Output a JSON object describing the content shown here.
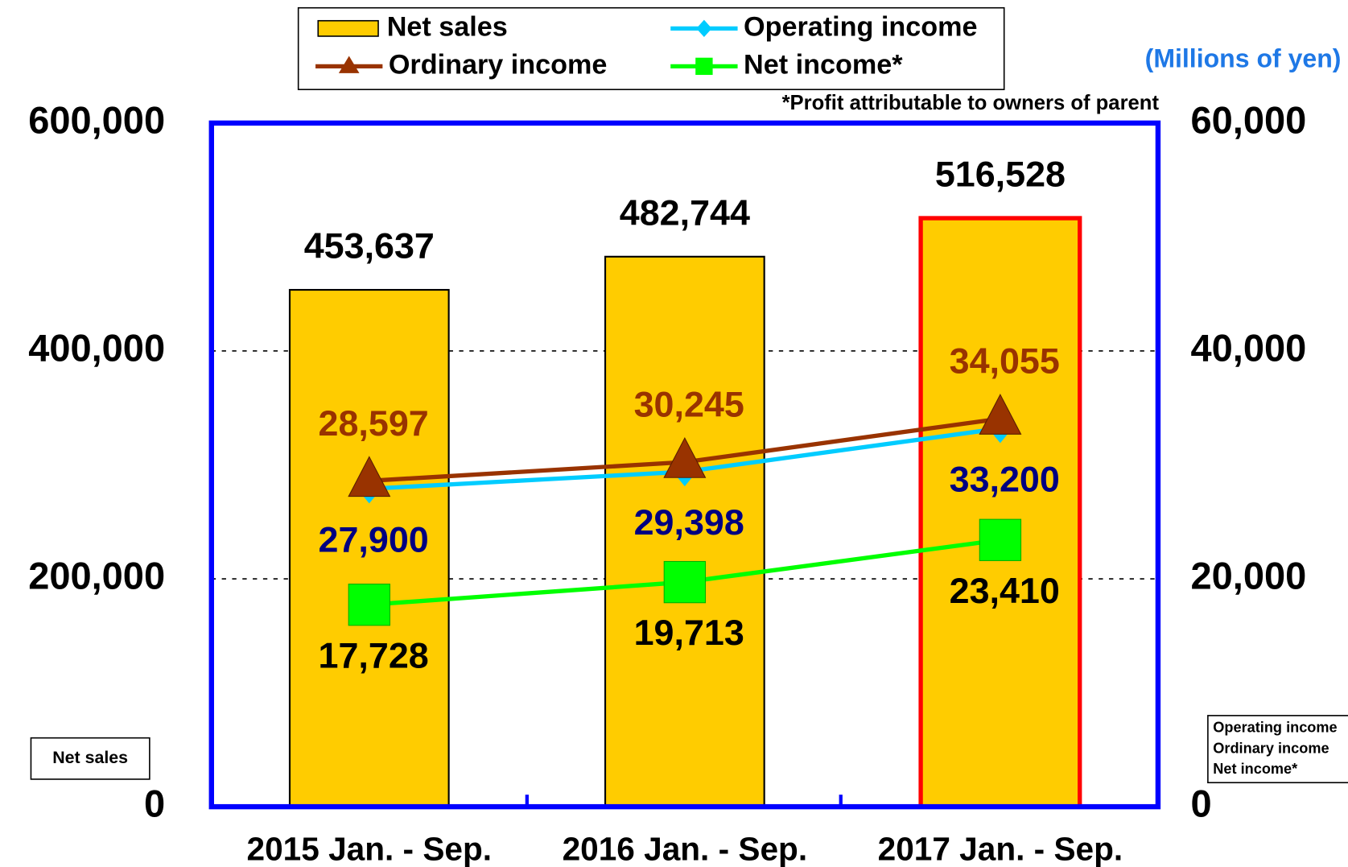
{
  "chart_data": {
    "type": "bar",
    "units": "(Millions of yen)",
    "note": "*Profit attributable to owners of parent",
    "ylabel": "Net sales",
    "y2label": [
      "Operating income",
      "Ordinary income",
      "Net income*"
    ],
    "categories": [
      "2015 Jan. - Sep.",
      "2016 Jan. - Sep.",
      "2017 Jan. - Sep."
    ],
    "series": [
      {
        "name": "Net sales",
        "type": "bar",
        "color": "#FFCC00",
        "edge_colors": [
          "#000000",
          "#000000",
          "#FF0000"
        ],
        "label_color": "#000000",
        "label_position": "above",
        "values": [
          453637,
          482744,
          516528
        ],
        "value_labels": [
          "453,637",
          "482,744",
          "516,528"
        ]
      },
      {
        "name": "Operating income",
        "type": "line",
        "marker": "diamond",
        "axis": "y2",
        "color": "#00CCFF",
        "label_color": "#000080",
        "label_position": "below",
        "values": [
          27900,
          29398,
          33200
        ],
        "value_labels": [
          "27,900",
          "29,398",
          "33,200"
        ]
      },
      {
        "name": "Ordinary income",
        "type": "line",
        "marker": "triangle",
        "axis": "y2",
        "color": "#993300",
        "label_color": "#993300",
        "label_position": "above",
        "values": [
          28597,
          30245,
          34055
        ],
        "value_labels": [
          "28,597",
          "30,245",
          "34,055"
        ]
      },
      {
        "name": "Net income*",
        "type": "line",
        "marker": "square",
        "axis": "y2",
        "color": "#00FF00",
        "label_color": "#000000",
        "label_position": "below",
        "values": [
          17728,
          19713,
          23410
        ],
        "value_labels": [
          "17,728",
          "19,713",
          "23,410"
        ]
      }
    ],
    "ylim": [
      0,
      600000
    ],
    "yticks": [
      0,
      {
        "value": 200000,
        "label": "200,000"
      },
      {
        "value": 400000,
        "label": "400,000"
      },
      {
        "value": 600000,
        "label": "600,000"
      }
    ],
    "y2lim": [
      0,
      60000
    ],
    "y2ticks": [
      0,
      {
        "value": 20000,
        "label": "20,000"
      },
      {
        "value": 40000,
        "label": "40,000"
      },
      {
        "value": 60000,
        "label": "60,000"
      }
    ],
    "grid": true,
    "legend": "top"
  }
}
